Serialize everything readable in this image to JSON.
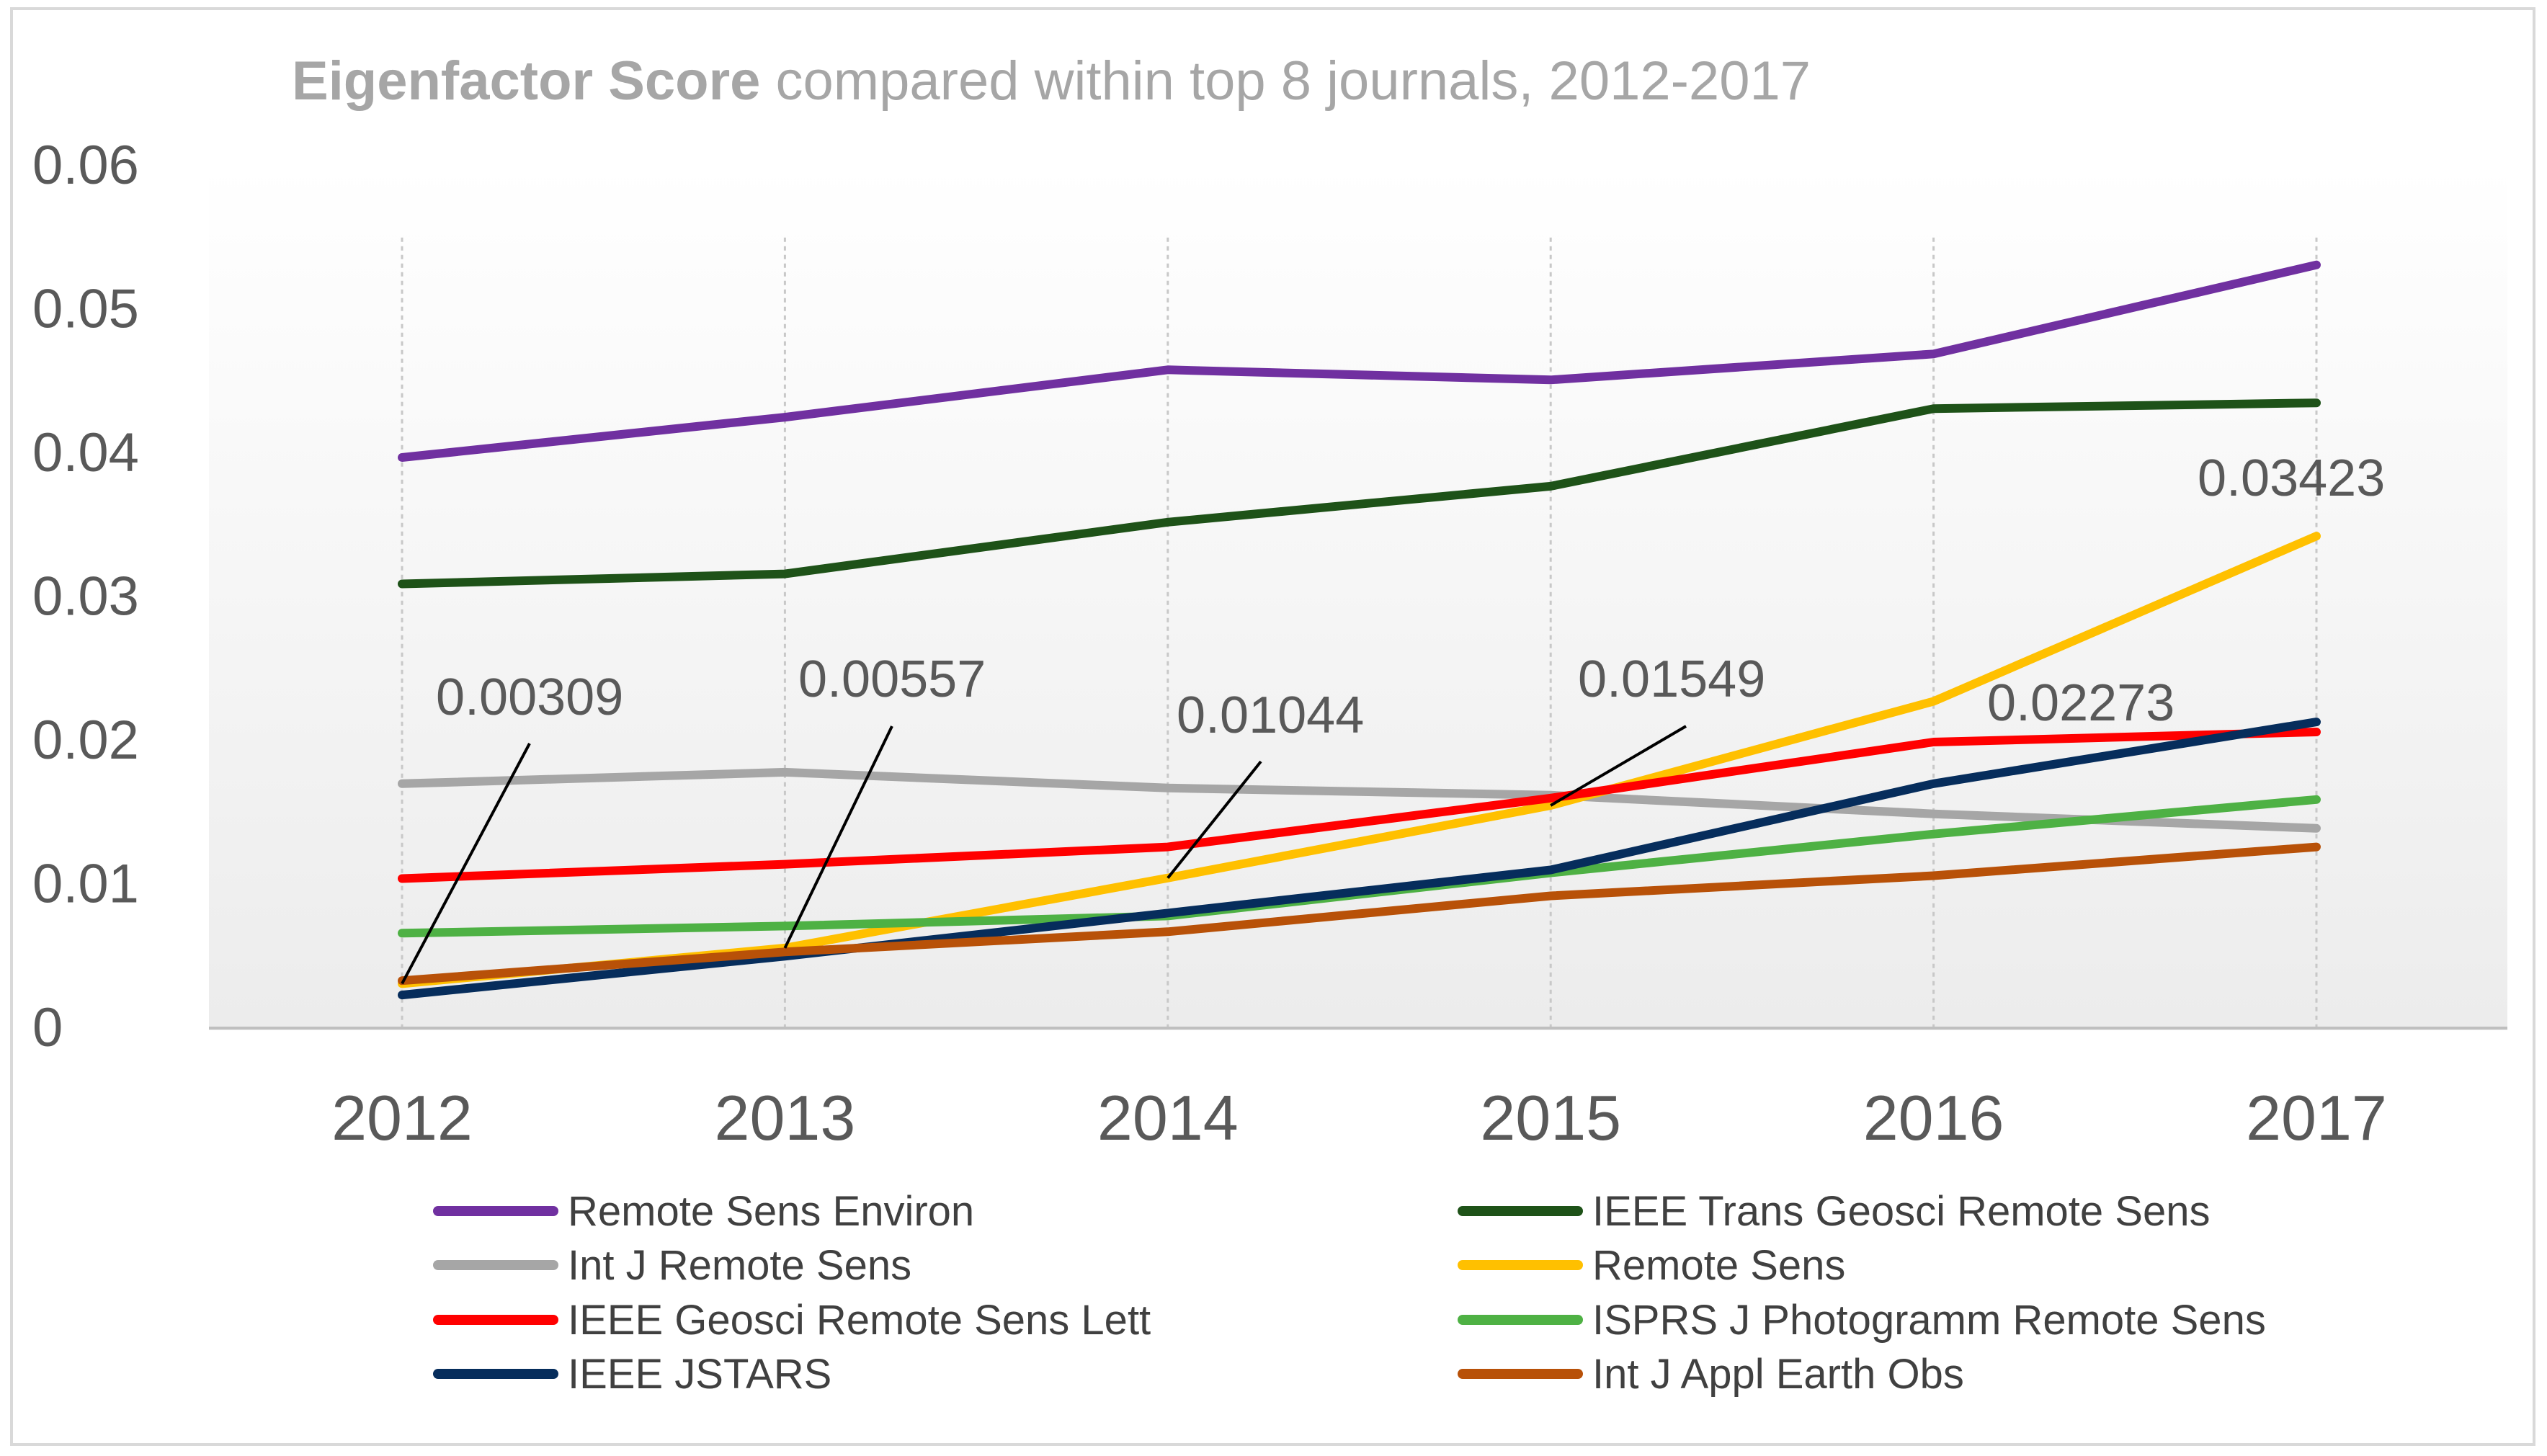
{
  "chart_data": {
    "type": "line",
    "title_bold": "Eigenfactor Score",
    "title_rest": " compared within top 8 journals, 2012-2017",
    "xlabel": "",
    "ylabel": "",
    "categories": [
      "2012",
      "2013",
      "2014",
      "2015",
      "2016",
      "2017"
    ],
    "ylim": [
      0,
      0.06
    ],
    "yticks": [
      "0",
      "0.01",
      "0.02",
      "0.03",
      "0.04",
      "0.05",
      "0.06"
    ],
    "grid": "vertical dotted at categories",
    "legend_position": "bottom",
    "series": [
      {
        "name": "Remote Sens Environ",
        "color": "#7030a0",
        "values": [
          0.0397,
          0.0425,
          0.0458,
          0.0451,
          0.0469,
          0.0531
        ]
      },
      {
        "name": "IEEE Trans Geosci Remote Sens",
        "color": "#1e5218",
        "values": [
          0.0309,
          0.0316,
          0.0352,
          0.0377,
          0.0431,
          0.0435
        ]
      },
      {
        "name": "Int J Remote Sens",
        "color": "#a6a6a6",
        "values": [
          0.017,
          0.0178,
          0.0167,
          0.0162,
          0.0149,
          0.0139
        ]
      },
      {
        "name": "Remote Sens",
        "color": "#ffc000",
        "values": [
          0.00309,
          0.00557,
          0.01044,
          0.01549,
          0.02273,
          0.03423
        ]
      },
      {
        "name": "IEEE Geosci Remote Sens Lett",
        "color": "#ff0000",
        "values": [
          0.0104,
          0.0114,
          0.0126,
          0.016,
          0.0199,
          0.0206
        ]
      },
      {
        "name": "ISPRS J Photogramm Remote Sens",
        "color": "#4eb144",
        "values": [
          0.0066,
          0.0071,
          0.0078,
          0.0108,
          0.0135,
          0.0159
        ]
      },
      {
        "name": "IEEE JSTARS",
        "color": "#062d5c",
        "values": [
          0.0023,
          0.005,
          0.008,
          0.011,
          0.017,
          0.0213
        ]
      },
      {
        "name": "Int J Appl Earth Obs",
        "color": "#b85108",
        "values": [
          0.0033,
          0.0053,
          0.0067,
          0.0092,
          0.0106,
          0.0126
        ]
      }
    ],
    "annotations": [
      {
        "series": "Remote Sens",
        "index": 0,
        "text": "0.00309",
        "callout": true
      },
      {
        "series": "Remote Sens",
        "index": 1,
        "text": "0.00557",
        "callout": true
      },
      {
        "series": "Remote Sens",
        "index": 2,
        "text": "0.01044",
        "callout": true
      },
      {
        "series": "Remote Sens",
        "index": 3,
        "text": "0.01549",
        "callout": true
      },
      {
        "series": "Remote Sens",
        "index": 4,
        "text": "0.02273",
        "callout": false
      },
      {
        "series": "Remote Sens",
        "index": 5,
        "text": "0.03423",
        "callout": false
      }
    ]
  }
}
